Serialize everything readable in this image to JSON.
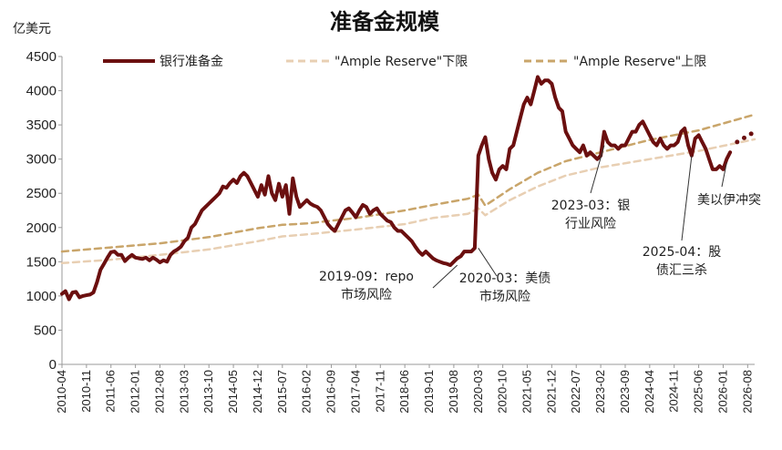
{
  "chart_data": {
    "type": "line",
    "title": "准备金规模",
    "unit": "亿美元",
    "ylim": [
      0,
      4500
    ],
    "yticks": [
      0,
      500,
      1000,
      1500,
      2000,
      2500,
      3000,
      3500,
      4000,
      4500
    ],
    "xlim": [
      "2010-04",
      "2026-10"
    ],
    "xticks": [
      "2010-04",
      "2010-11",
      "2011-06",
      "2012-01",
      "2012-08",
      "2013-03",
      "2013-10",
      "2014-05",
      "2014-12",
      "2015-07",
      "2016-02",
      "2016-09",
      "2017-04",
      "2017-11",
      "2018-06",
      "2019-01",
      "2019-08",
      "2020-03",
      "2020-10",
      "2021-05",
      "2021-12",
      "2022-07",
      "2023-02",
      "2023-09",
      "2024-04",
      "2024-11",
      "2025-06",
      "2026-01",
      "2026-08"
    ],
    "grid": false,
    "legend_position": "top",
    "series": [
      {
        "name": "银行准备金",
        "color": "#6b0f0f",
        "style": "solid",
        "points": [
          [
            "2010-04",
            1030
          ],
          [
            "2010-05",
            1070
          ],
          [
            "2010-06",
            950
          ],
          [
            "2010-07",
            1050
          ],
          [
            "2010-08",
            1060
          ],
          [
            "2010-09",
            980
          ],
          [
            "2010-10",
            1000
          ],
          [
            "2010-11",
            1010
          ],
          [
            "2010-12",
            1020
          ],
          [
            "2011-01",
            1050
          ],
          [
            "2011-02",
            1200
          ],
          [
            "2011-03",
            1380
          ],
          [
            "2011-04",
            1470
          ],
          [
            "2011-05",
            1560
          ],
          [
            "2011-06",
            1640
          ],
          [
            "2011-07",
            1650
          ],
          [
            "2011-08",
            1600
          ],
          [
            "2011-09",
            1600
          ],
          [
            "2011-10",
            1510
          ],
          [
            "2011-11",
            1560
          ],
          [
            "2011-12",
            1600
          ],
          [
            "2012-01",
            1560
          ],
          [
            "2012-02",
            1550
          ],
          [
            "2012-03",
            1540
          ],
          [
            "2012-04",
            1560
          ],
          [
            "2012-05",
            1520
          ],
          [
            "2012-06",
            1560
          ],
          [
            "2012-07",
            1530
          ],
          [
            "2012-08",
            1490
          ],
          [
            "2012-09",
            1520
          ],
          [
            "2012-10",
            1500
          ],
          [
            "2012-11",
            1600
          ],
          [
            "2012-12",
            1650
          ],
          [
            "2013-01",
            1680
          ],
          [
            "2013-02",
            1720
          ],
          [
            "2013-03",
            1800
          ],
          [
            "2013-04",
            1850
          ],
          [
            "2013-05",
            2000
          ],
          [
            "2013-06",
            2050
          ],
          [
            "2013-07",
            2150
          ],
          [
            "2013-08",
            2250
          ],
          [
            "2013-09",
            2300
          ],
          [
            "2013-10",
            2350
          ],
          [
            "2013-11",
            2400
          ],
          [
            "2013-12",
            2450
          ],
          [
            "2014-01",
            2500
          ],
          [
            "2014-02",
            2600
          ],
          [
            "2014-03",
            2580
          ],
          [
            "2014-04",
            2650
          ],
          [
            "2014-05",
            2700
          ],
          [
            "2014-06",
            2650
          ],
          [
            "2014-07",
            2750
          ],
          [
            "2014-08",
            2800
          ],
          [
            "2014-09",
            2750
          ],
          [
            "2014-10",
            2650
          ],
          [
            "2014-11",
            2550
          ],
          [
            "2014-12",
            2450
          ],
          [
            "2015-01",
            2620
          ],
          [
            "2015-02",
            2480
          ],
          [
            "2015-03",
            2750
          ],
          [
            "2015-04",
            2500
          ],
          [
            "2015-05",
            2400
          ],
          [
            "2015-06",
            2640
          ],
          [
            "2015-07",
            2450
          ],
          [
            "2015-08",
            2620
          ],
          [
            "2015-09",
            2200
          ],
          [
            "2015-10",
            2720
          ],
          [
            "2015-11",
            2450
          ],
          [
            "2015-12",
            2300
          ],
          [
            "2016-01",
            2350
          ],
          [
            "2016-02",
            2400
          ],
          [
            "2016-03",
            2350
          ],
          [
            "2016-04",
            2320
          ],
          [
            "2016-05",
            2300
          ],
          [
            "2016-06",
            2250
          ],
          [
            "2016-07",
            2150
          ],
          [
            "2016-08",
            2050
          ],
          [
            "2016-09",
            1990
          ],
          [
            "2016-10",
            1950
          ],
          [
            "2016-11",
            2050
          ],
          [
            "2016-12",
            2150
          ],
          [
            "2017-01",
            2250
          ],
          [
            "2017-02",
            2280
          ],
          [
            "2017-03",
            2220
          ],
          [
            "2017-04",
            2150
          ],
          [
            "2017-05",
            2250
          ],
          [
            "2017-06",
            2330
          ],
          [
            "2017-07",
            2300
          ],
          [
            "2017-08",
            2200
          ],
          [
            "2017-09",
            2250
          ],
          [
            "2017-10",
            2280
          ],
          [
            "2017-11",
            2200
          ],
          [
            "2017-12",
            2150
          ],
          [
            "2018-01",
            2100
          ],
          [
            "2018-02",
            2080
          ],
          [
            "2018-03",
            2000
          ],
          [
            "2018-04",
            1950
          ],
          [
            "2018-05",
            1950
          ],
          [
            "2018-06",
            1900
          ],
          [
            "2018-07",
            1850
          ],
          [
            "2018-08",
            1800
          ],
          [
            "2018-09",
            1720
          ],
          [
            "2018-10",
            1650
          ],
          [
            "2018-11",
            1600
          ],
          [
            "2018-12",
            1650
          ],
          [
            "2019-01",
            1600
          ],
          [
            "2019-02",
            1550
          ],
          [
            "2019-03",
            1520
          ],
          [
            "2019-04",
            1500
          ],
          [
            "2019-05",
            1480
          ],
          [
            "2019-06",
            1470
          ],
          [
            "2019-07",
            1450
          ],
          [
            "2019-08",
            1500
          ],
          [
            "2019-09",
            1550
          ],
          [
            "2019-10",
            1580
          ],
          [
            "2019-11",
            1650
          ],
          [
            "2019-12",
            1650
          ],
          [
            "2020-01",
            1650
          ],
          [
            "2020-02",
            1700
          ],
          [
            "2020-03",
            3050
          ],
          [
            "2020-04",
            3200
          ],
          [
            "2020-05",
            3320
          ],
          [
            "2020-06",
            3000
          ],
          [
            "2020-07",
            2800
          ],
          [
            "2020-08",
            2700
          ],
          [
            "2020-09",
            2850
          ],
          [
            "2020-10",
            2900
          ],
          [
            "2020-11",
            2850
          ],
          [
            "2020-12",
            3150
          ],
          [
            "2021-01",
            3200
          ],
          [
            "2021-02",
            3400
          ],
          [
            "2021-03",
            3600
          ],
          [
            "2021-04",
            3800
          ],
          [
            "2021-05",
            3900
          ],
          [
            "2021-06",
            3800
          ],
          [
            "2021-07",
            4000
          ],
          [
            "2021-08",
            4200
          ],
          [
            "2021-09",
            4100
          ],
          [
            "2021-10",
            4150
          ],
          [
            "2021-11",
            4150
          ],
          [
            "2021-12",
            4100
          ],
          [
            "2022-01",
            3900
          ],
          [
            "2022-02",
            3750
          ],
          [
            "2022-03",
            3700
          ],
          [
            "2022-04",
            3400
          ],
          [
            "2022-05",
            3300
          ],
          [
            "2022-06",
            3200
          ],
          [
            "2022-07",
            3150
          ],
          [
            "2022-08",
            3100
          ],
          [
            "2022-09",
            3200
          ],
          [
            "2022-10",
            3050
          ],
          [
            "2022-11",
            3100
          ],
          [
            "2022-12",
            3050
          ],
          [
            "2023-01",
            3000
          ],
          [
            "2023-02",
            3050
          ],
          [
            "2023-03",
            3400
          ],
          [
            "2023-04",
            3250
          ],
          [
            "2023-05",
            3200
          ],
          [
            "2023-06",
            3200
          ],
          [
            "2023-07",
            3150
          ],
          [
            "2023-08",
            3200
          ],
          [
            "2023-09",
            3200
          ],
          [
            "2023-10",
            3300
          ],
          [
            "2023-11",
            3400
          ],
          [
            "2023-12",
            3400
          ],
          [
            "2024-01",
            3500
          ],
          [
            "2024-02",
            3550
          ],
          [
            "2024-03",
            3450
          ],
          [
            "2024-04",
            3350
          ],
          [
            "2024-05",
            3250
          ],
          [
            "2024-06",
            3200
          ],
          [
            "2024-07",
            3300
          ],
          [
            "2024-08",
            3200
          ],
          [
            "2024-09",
            3150
          ],
          [
            "2024-10",
            3200
          ],
          [
            "2024-11",
            3200
          ],
          [
            "2024-12",
            3250
          ],
          [
            "2025-01",
            3400
          ],
          [
            "2025-02",
            3450
          ],
          [
            "2025-03",
            3200
          ],
          [
            "2025-04",
            3050
          ],
          [
            "2025-05",
            3300
          ],
          [
            "2025-06",
            3350
          ],
          [
            "2025-07",
            3250
          ],
          [
            "2025-08",
            3150
          ],
          [
            "2025-09",
            3000
          ],
          [
            "2025-10",
            2850
          ],
          [
            "2025-11",
            2850
          ],
          [
            "2025-12",
            2900
          ],
          [
            "2026-01",
            2850
          ],
          [
            "2026-02",
            3000
          ],
          [
            "2026-03",
            3100
          ]
        ]
      },
      {
        "name": "\"Ample Reserve\"下限",
        "color": "#e8cfb3",
        "style": "dashed",
        "points": [
          [
            "2010-04",
            1480
          ],
          [
            "2011-06",
            1530
          ],
          [
            "2012-08",
            1600
          ],
          [
            "2013-10",
            1680
          ],
          [
            "2014-12",
            1800
          ],
          [
            "2015-07",
            1870
          ],
          [
            "2016-02",
            1900
          ],
          [
            "2017-04",
            1970
          ],
          [
            "2018-06",
            2050
          ],
          [
            "2019-02",
            2140
          ],
          [
            "2019-12",
            2200
          ],
          [
            "2020-03",
            2280
          ],
          [
            "2020-05",
            2180
          ],
          [
            "2020-12",
            2400
          ],
          [
            "2021-08",
            2600
          ],
          [
            "2022-04",
            2760
          ],
          [
            "2023-02",
            2880
          ],
          [
            "2024-04",
            3000
          ],
          [
            "2025-06",
            3120
          ],
          [
            "2026-10",
            3290
          ]
        ]
      },
      {
        "name": "\"Ample Reserve\"上限",
        "color": "#c9a56a",
        "style": "dashed",
        "points": [
          [
            "2010-04",
            1650
          ],
          [
            "2011-06",
            1710
          ],
          [
            "2012-08",
            1770
          ],
          [
            "2013-10",
            1860
          ],
          [
            "2014-12",
            1990
          ],
          [
            "2015-07",
            2040
          ],
          [
            "2016-02",
            2060
          ],
          [
            "2017-04",
            2140
          ],
          [
            "2018-06",
            2250
          ],
          [
            "2019-02",
            2330
          ],
          [
            "2019-12",
            2420
          ],
          [
            "2020-03",
            2480
          ],
          [
            "2020-05",
            2320
          ],
          [
            "2020-12",
            2560
          ],
          [
            "2021-08",
            2800
          ],
          [
            "2022-04",
            2970
          ],
          [
            "2023-02",
            3100
          ],
          [
            "2024-04",
            3280
          ],
          [
            "2025-06",
            3420
          ],
          [
            "2026-10",
            3650
          ]
        ]
      }
    ],
    "projection_dots": [
      [
        "2026-05",
        3250
      ],
      [
        "2026-07",
        3310
      ],
      [
        "2026-09",
        3370
      ]
    ],
    "annotations": [
      {
        "lines": [
          "2019-09：repo",
          "市场风险"
        ],
        "point": [
          "2019-09",
          1450
        ]
      },
      {
        "lines": [
          "2020-03：美债",
          "市场风险"
        ],
        "point": [
          "2020-03",
          1700
        ]
      },
      {
        "lines": [
          "2023-03：银",
          "行业风险"
        ],
        "point": [
          "2023-03",
          3200
        ]
      },
      {
        "lines": [
          "2025-04：股",
          "债汇三杀"
        ],
        "point": [
          "2025-04",
          3050
        ]
      },
      {
        "lines": [
          "美以伊冲突"
        ],
        "point": [
          "2026-02",
          2950
        ]
      }
    ]
  }
}
